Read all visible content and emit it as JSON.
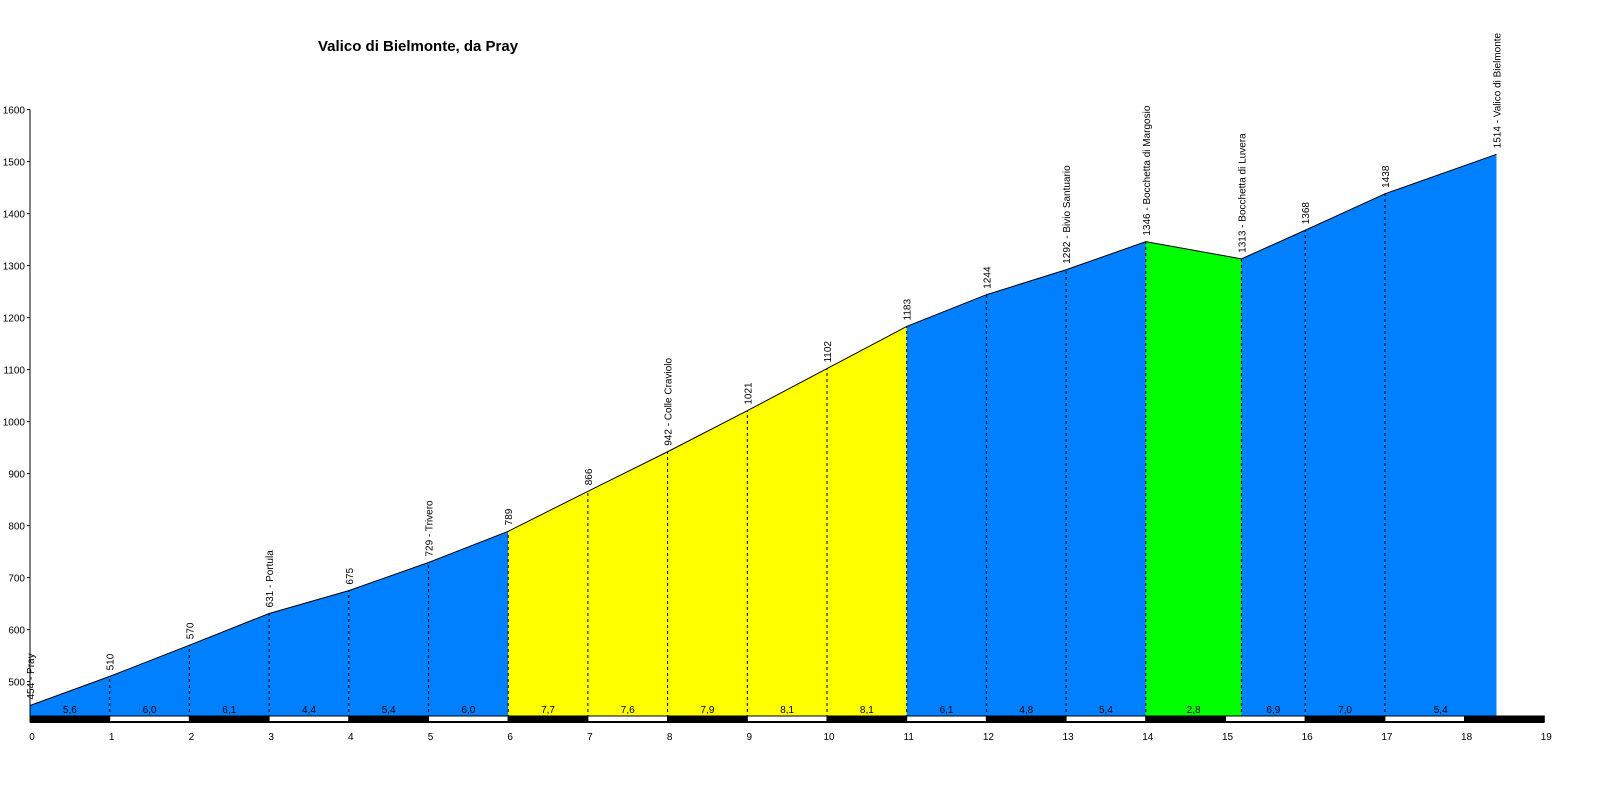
{
  "chart_data": {
    "type": "area",
    "title": "Valico di Bielmonte, da Pray",
    "xlabel": "",
    "ylabel": "",
    "xlim": [
      0,
      19
    ],
    "ylim": [
      430,
      1600
    ],
    "x_ticks": [
      0,
      1,
      2,
      3,
      4,
      5,
      6,
      7,
      8,
      9,
      10,
      11,
      12,
      13,
      14,
      15,
      16,
      17,
      18,
      19
    ],
    "y_ticks": [
      500,
      600,
      700,
      800,
      900,
      1000,
      1100,
      1200,
      1300,
      1400,
      1500,
      1600
    ],
    "grid": false,
    "points": [
      {
        "x": 0,
        "y": 454,
        "label": "454 - Pray"
      },
      {
        "x": 1,
        "y": 510,
        "label": "510"
      },
      {
        "x": 2,
        "y": 570,
        "label": "570"
      },
      {
        "x": 3,
        "y": 631,
        "label": "631 - Portula"
      },
      {
        "x": 4,
        "y": 675,
        "label": "675"
      },
      {
        "x": 5,
        "y": 729,
        "label": "729 - Trivero"
      },
      {
        "x": 6,
        "y": 789,
        "label": "789"
      },
      {
        "x": 7,
        "y": 866,
        "label": "866"
      },
      {
        "x": 8,
        "y": 942,
        "label": "942 - Colle Craviolo"
      },
      {
        "x": 9,
        "y": 1021,
        "label": "1021"
      },
      {
        "x": 10,
        "y": 1102,
        "label": "1102"
      },
      {
        "x": 11,
        "y": 1183,
        "label": "1183"
      },
      {
        "x": 12,
        "y": 1244,
        "label": "1244"
      },
      {
        "x": 13,
        "y": 1292,
        "label": "1292 - Bivio Santuario"
      },
      {
        "x": 14,
        "y": 1346,
        "label": "1346 - Bocchetta di Margosio"
      },
      {
        "x": 15.2,
        "y": 1313,
        "label": "1313 - Bocchetta di Luvera"
      },
      {
        "x": 16,
        "y": 1368,
        "label": "1368"
      },
      {
        "x": 17,
        "y": 1438,
        "label": "1438"
      },
      {
        "x": 18.4,
        "y": 1514,
        "label": "1514 - Valico di Bielmonte"
      }
    ],
    "segments": [
      {
        "from": 0,
        "to": 1,
        "gradient": "5,6",
        "color": "#0080ff"
      },
      {
        "from": 1,
        "to": 2,
        "gradient": "6,0",
        "color": "#0080ff"
      },
      {
        "from": 2,
        "to": 3,
        "gradient": "6,1",
        "color": "#0080ff"
      },
      {
        "from": 3,
        "to": 4,
        "gradient": "4,4",
        "color": "#0080ff"
      },
      {
        "from": 4,
        "to": 5,
        "gradient": "5,4",
        "color": "#0080ff"
      },
      {
        "from": 5,
        "to": 6,
        "gradient": "6,0",
        "color": "#0080ff"
      },
      {
        "from": 6,
        "to": 7,
        "gradient": "7,7",
        "color": "#ffff00"
      },
      {
        "from": 7,
        "to": 8,
        "gradient": "7,6",
        "color": "#ffff00"
      },
      {
        "from": 8,
        "to": 9,
        "gradient": "7,9",
        "color": "#ffff00"
      },
      {
        "from": 9,
        "to": 10,
        "gradient": "8,1",
        "color": "#ffff00"
      },
      {
        "from": 10,
        "to": 11,
        "gradient": "8,1",
        "color": "#ffff00"
      },
      {
        "from": 11,
        "to": 12,
        "gradient": "6,1",
        "color": "#0080ff"
      },
      {
        "from": 12,
        "to": 13,
        "gradient": "4,8",
        "color": "#0080ff"
      },
      {
        "from": 13,
        "to": 14,
        "gradient": "5,4",
        "color": "#0080ff"
      },
      {
        "from": 14,
        "to": 15.2,
        "gradient": "2,8",
        "color": "#00ff00"
      },
      {
        "from": 15.2,
        "to": 16,
        "gradient": "6,9",
        "color": "#0080ff"
      },
      {
        "from": 16,
        "to": 17,
        "gradient": "7,0",
        "color": "#0080ff"
      },
      {
        "from": 17,
        "to": 18.4,
        "gradient": "5,4",
        "color": "#0080ff"
      }
    ]
  }
}
